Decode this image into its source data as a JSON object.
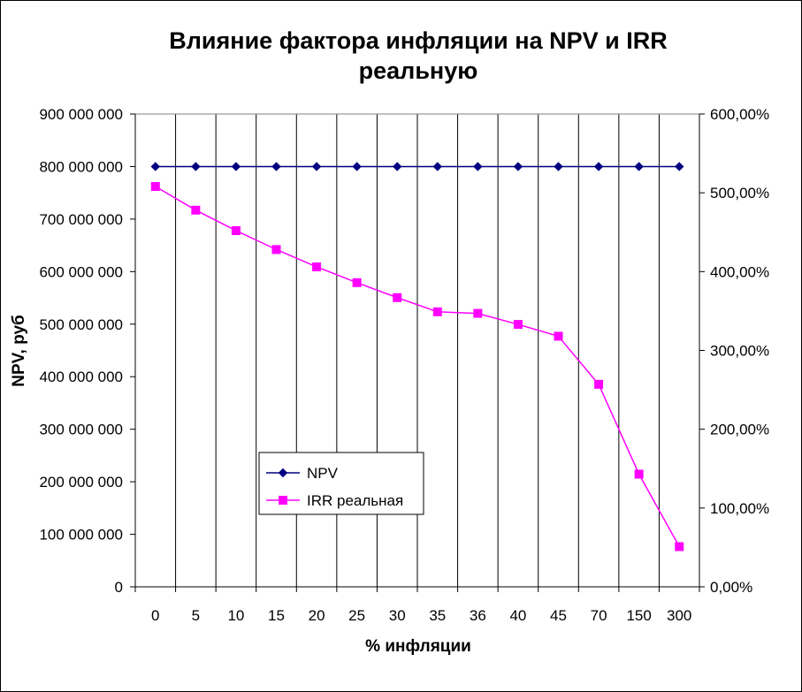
{
  "chart_data": {
    "type": "line",
    "title_lines": [
      "Влияние фактора инфляции на NPV и IRR",
      "реальную"
    ],
    "xlabel": "% инфляции",
    "ylabel": "NPV, руб",
    "categories": [
      "0",
      "5",
      "10",
      "15",
      "20",
      "25",
      "30",
      "35",
      "36",
      "40",
      "45",
      "70",
      "150",
      "300"
    ],
    "y_left": {
      "lim": [
        0,
        900000000
      ],
      "ticks": [
        0,
        100000000,
        200000000,
        300000000,
        400000000,
        500000000,
        600000000,
        700000000,
        800000000,
        900000000
      ],
      "tick_labels": [
        "0",
        "100 000 000",
        "200 000 000",
        "300 000 000",
        "400 000 000",
        "500 000 000",
        "600 000 000",
        "700 000 000",
        "800 000 000",
        "900 000 000"
      ]
    },
    "y_right": {
      "lim": [
        0,
        6
      ],
      "ticks": [
        0,
        1,
        2,
        3,
        4,
        5,
        6
      ],
      "tick_labels": [
        "0,00%",
        "100,00%",
        "200,00%",
        "300,00%",
        "400,00%",
        "500,00%",
        "600,00%"
      ]
    },
    "series": [
      {
        "name": "NPV",
        "axis": "left",
        "color": "#000080",
        "marker": "diamond",
        "values": [
          800000000,
          800000000,
          800000000,
          800000000,
          800000000,
          800000000,
          800000000,
          800000000,
          800000000,
          800000000,
          800000000,
          800000000,
          800000000,
          800000000
        ]
      },
      {
        "name": "IRR реальная",
        "axis": "right",
        "color": "#ff00ff",
        "marker": "square",
        "values": [
          5.08,
          4.78,
          4.52,
          4.28,
          4.06,
          3.86,
          3.67,
          3.49,
          3.47,
          3.33,
          3.18,
          2.57,
          1.43,
          0.51
        ]
      }
    ],
    "grid": "vertical",
    "legend_position": "lower-center"
  }
}
